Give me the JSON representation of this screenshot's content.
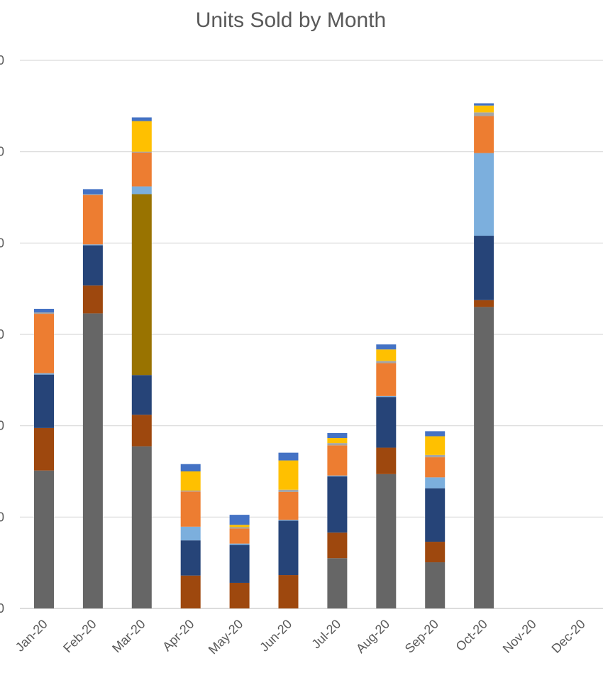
{
  "chart_data": {
    "type": "bar",
    "stacked": true,
    "title": "Units Sold by Month",
    "xlabel": "",
    "ylabel": "",
    "categories": [
      "Jan-20",
      "Feb-20",
      "Mar-20",
      "Apr-20",
      "May-20",
      "Jun-20",
      "Jul-20",
      "Aug-20",
      "Sep-20",
      "Oct-20",
      "Nov-20",
      "Dec-20"
    ],
    "y_tick_labels": [
      "0",
      "0",
      "0",
      "0",
      "0",
      "0",
      "0"
    ],
    "ylim": [
      0,
      120
    ],
    "grid": true,
    "legend": "none",
    "series": [
      {
        "color": "#666666",
        "values": [
          30.2,
          64.6,
          35.5,
          0,
          0,
          0,
          11.0,
          29.4,
          10.1,
          66.0,
          0,
          0
        ]
      },
      {
        "color": "#9E480E",
        "values": [
          9.3,
          6.1,
          6.9,
          7.2,
          5.6,
          7.3,
          5.6,
          5.8,
          4.5,
          1.5,
          0,
          0
        ]
      },
      {
        "color": "#264478",
        "values": [
          11.7,
          8.8,
          8.7,
          7.7,
          8.3,
          11.9,
          12.3,
          11.1,
          11.7,
          14.1,
          0,
          0
        ]
      },
      {
        "color": "#997300",
        "values": [
          0,
          0,
          39.6,
          0,
          0,
          0,
          0,
          0,
          0,
          0,
          0,
          0
        ]
      },
      {
        "color": "#7CAFDD",
        "values": [
          0.3,
          0.2,
          1.7,
          3.0,
          0.3,
          0.2,
          0.2,
          0.2,
          2.4,
          18.1,
          0,
          0
        ]
      },
      {
        "color": "#ED7D31",
        "values": [
          13.0,
          10.8,
          7.4,
          7.7,
          3.3,
          6.1,
          6.6,
          7.2,
          4.4,
          8.1,
          0,
          0
        ]
      },
      {
        "color": "#A5A5A5",
        "values": [
          0.3,
          0.2,
          0.2,
          0.2,
          0.3,
          0.5,
          0.5,
          0.5,
          0.5,
          0.8,
          0,
          0
        ]
      },
      {
        "color": "#FFC000",
        "values": [
          0,
          0,
          6.7,
          4.2,
          0.5,
          6.4,
          1.1,
          2.5,
          4.1,
          1.5,
          0,
          0
        ]
      },
      {
        "color": "#4472C4",
        "values": [
          0.8,
          1.1,
          0.8,
          1.6,
          2.2,
          1.7,
          1.1,
          1.1,
          1.1,
          0.5,
          0,
          0
        ]
      }
    ]
  }
}
